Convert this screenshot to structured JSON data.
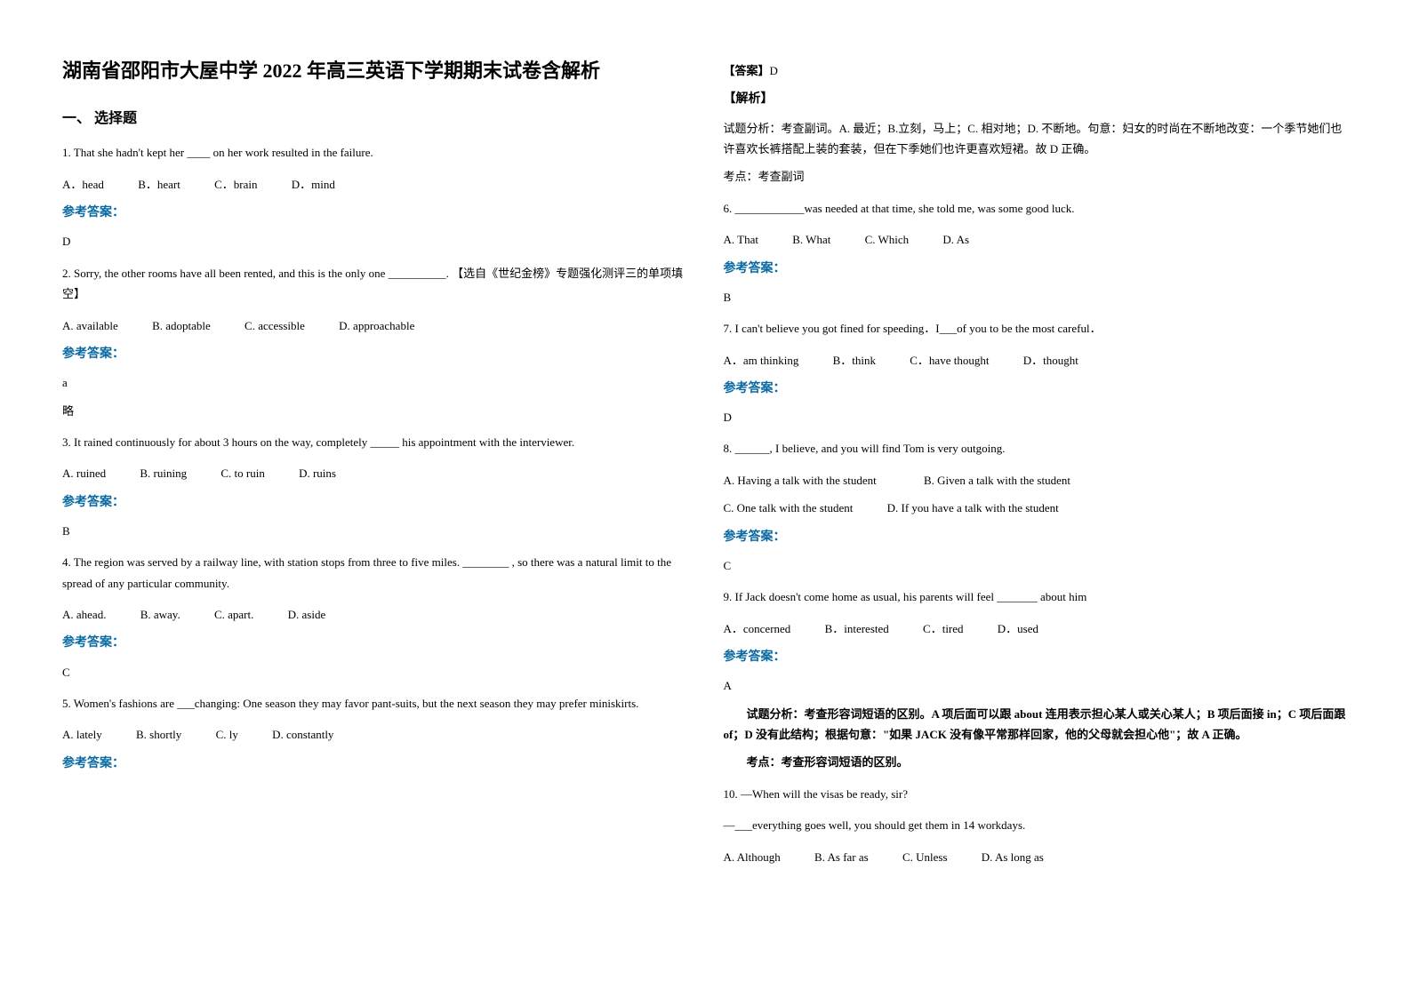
{
  "title": "湖南省邵阳市大屋中学 2022 年高三英语下学期期末试卷含解析",
  "section1_header": "一、 选择题",
  "q1": {
    "text": "1. That she hadn't kept her ____ on her work resulted in the failure.",
    "optA": "A．head",
    "optB": "B．heart",
    "optC": "C．brain",
    "optD": "D．mind",
    "answer_label": "参考答案：",
    "answer": "D"
  },
  "q2": {
    "text": "2. Sorry, the other rooms have all been rented, and this is the only one __________. 【选自《世纪金榜》专题强化测评三的单项填空】",
    "optA": "A. available",
    "optB": "B. adoptable",
    "optC": "C. accessible",
    "optD": "D. approachable",
    "answer_label": "参考答案：",
    "answer": "a",
    "note": "略"
  },
  "q3": {
    "text": "3. It rained continuously for about 3 hours on the way, completely _____ his appointment with the interviewer.",
    "optA": "A. ruined",
    "optB": "B. ruining",
    "optC": "C. to ruin",
    "optD": "D. ruins",
    "answer_label": "参考答案：",
    "answer": "B"
  },
  "q4": {
    "text": "4. The region was served by a railway line, with station stops from three to five miles. ________ , so there was a natural limit to the spread of any particular community.",
    "optA": "A. ahead.",
    "optB": "B. away.",
    "optC": "C. apart.",
    "optD": "D. aside",
    "answer_label": "参考答案：",
    "answer": "C"
  },
  "q5": {
    "text": "5. Women's fashions are ___changing: One season they may favor pant-suits, but the next season they may prefer miniskirts.",
    "optA": "A. lately",
    "optB": "B. shortly",
    "optC": "C. ly",
    "optD": "D. constantly",
    "answer_label": "参考答案：",
    "answer_prefix": "【答案】",
    "answer": "D",
    "analysis_label": "【解析】",
    "analysis": "试题分析：考查副词。A. 最近；B.立刻，马上；C. 相对地；D. 不断地。句意：妇女的时尚在不断地改变：一个季节她们也许喜欢长裤搭配上装的套装，但在下季她们也许更喜欢短裙。故 D 正确。",
    "point": "考点：考查副词"
  },
  "q6": {
    "text": "6. ____________was needed at that time, she told me, was some good luck.",
    "optA": "A. That",
    "optB": "B. What",
    "optC": "C. Which",
    "optD": "D. As",
    "answer_label": "参考答案：",
    "answer": "B"
  },
  "q7": {
    "text": "7. I can't believe you got fined for speeding．I___of you to be the most careful．",
    "optA": "A．am thinking",
    "optB": "B．think",
    "optC": "C．have thought",
    "optD": "D．thought",
    "answer_label": "参考答案：",
    "answer": "D"
  },
  "q8": {
    "text": "8. ______, I believe, and you will find Tom is very outgoing.",
    "optA": "A. Having a talk with the student",
    "optB": "B. Given a talk with the student",
    "optC": "C. One talk with the student",
    "optD": "D. If you have a talk with the student",
    "answer_label": "参考答案：",
    "answer": "C"
  },
  "q9": {
    "text": "9. If Jack doesn't come home as usual, his parents will feel _______ about him",
    "optA": "A．concerned",
    "optB": "B．interested",
    "optC": "C．tired",
    "optD": "D．used",
    "answer_label": "参考答案：",
    "answer": "A",
    "analysis": "试题分析：考查形容词短语的区别。A 项后面可以跟 about 连用表示担心某人或关心某人；B 项后面接 in；C 项后面跟 of；D 没有此结构；根据句意：\"如果 JACK 没有像平常那样回家，他的父母就会担心他\"；故 A 正确。",
    "point": "考点：考查形容词短语的区别。"
  },
  "q10": {
    "text1": "10. —When will the visas be ready, sir?",
    "text2": "—___everything goes well, you should get them in 14 workdays.",
    "optA": "A. Although",
    "optB": "B. As far as",
    "optC": "C. Unless",
    "optD": "D. As long as"
  }
}
